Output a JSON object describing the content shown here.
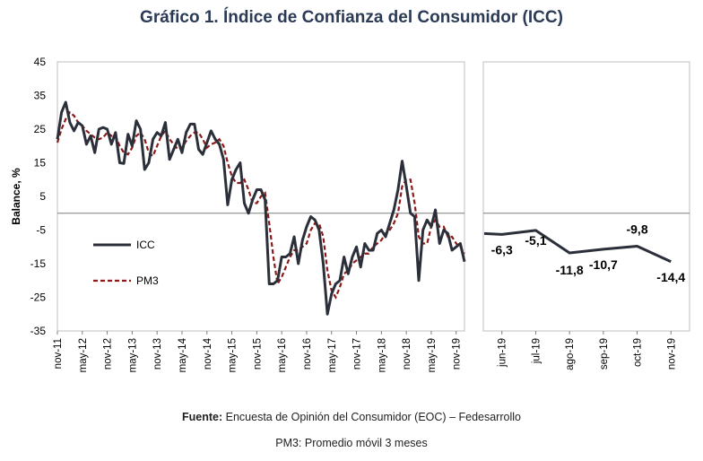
{
  "title": "Gráfico 1. Índice de Confianza del Consumidor (ICC)",
  "source": {
    "label": "Fuente:",
    "text": "Encuesta de Opinión del Consumidor (EOC) – Fedesarrollo",
    "note": "PM3: Promedio móvil 3 meses"
  },
  "chart_data": [
    {
      "type": "line",
      "ylabel": "Balance, %",
      "ylim": [
        -35,
        45
      ],
      "yticks": [
        45,
        35,
        25,
        15,
        5,
        -5,
        -15,
        -25,
        -35
      ],
      "start_month": "nov-11",
      "x_ticks": [
        "nov-11",
        "may-12",
        "nov-12",
        "may-13",
        "nov-13",
        "may-14",
        "nov-14",
        "may-15",
        "nov-15",
        "may-16",
        "nov-16",
        "may-17",
        "nov-17",
        "may-18",
        "nov-18",
        "may-19",
        "nov-19"
      ],
      "legend": {
        "placement": "lower-left",
        "entries": [
          "ICC",
          "PM3"
        ]
      },
      "series": [
        {
          "name": "ICC",
          "color": "#2b2f3a",
          "style": "solid",
          "values": [
            22,
            30,
            33,
            27,
            24.5,
            27,
            26,
            20.5,
            23,
            18,
            25,
            25.5,
            25,
            20.5,
            24,
            15,
            14.8,
            23.5,
            20,
            27.5,
            25,
            13,
            15,
            22,
            24,
            23,
            27,
            16,
            19,
            22,
            18,
            24,
            26.5,
            26.5,
            19,
            17.5,
            21,
            24.5,
            22,
            20.5,
            16,
            2.5,
            10,
            13,
            15,
            3,
            0,
            4,
            7,
            7,
            4,
            -21,
            -21,
            -20,
            -13,
            -13,
            -12,
            -7,
            -15,
            -8,
            -4,
            -1,
            -2,
            -5,
            -15,
            -30,
            -24,
            -21,
            -20,
            -13,
            -18,
            -13,
            -10,
            -16,
            -9,
            -11,
            -11,
            -6,
            -5,
            -7,
            -3,
            1,
            7,
            15.5,
            8,
            0,
            -1,
            -20,
            -5,
            -2,
            -4,
            1,
            -9,
            -5,
            -6,
            -11,
            -10,
            -9,
            -14.4
          ]
        },
        {
          "name": "PM3",
          "color": "#8b1a1a",
          "style": "dashed",
          "values": [
            21,
            25,
            28,
            30,
            29,
            27,
            26,
            24.5,
            23.5,
            22.5,
            22,
            22.5,
            24,
            23,
            23,
            20,
            18,
            17.5,
            19.5,
            23,
            24,
            22,
            18,
            17,
            20,
            23,
            24.5,
            22,
            20.5,
            19,
            19.5,
            21.5,
            23,
            24,
            24,
            22,
            19.5,
            20.5,
            21,
            22,
            20,
            15,
            11,
            9,
            9,
            10,
            7,
            3,
            3,
            5,
            6,
            -3,
            -13,
            -21,
            -19,
            -16,
            -13,
            -11,
            -11,
            -10,
            -9,
            -5,
            -3,
            -3,
            -7,
            -17,
            -23,
            -25,
            -22,
            -18,
            -17,
            -15,
            -14,
            -13,
            -12,
            -12,
            -10,
            -9,
            -8,
            -6,
            -5,
            -3,
            0,
            8,
            10,
            10,
            3,
            -7,
            -9,
            -9,
            -4,
            -2,
            -4,
            -4,
            -7,
            -7,
            -9,
            -10,
            -12
          ]
        }
      ]
    },
    {
      "type": "line",
      "ylim": [
        -35,
        45
      ],
      "categories": [
        "jun-19",
        "jul-19",
        "ago-19",
        "sep-19",
        "oct-19",
        "nov-19"
      ],
      "series": [
        {
          "name": "ICC",
          "color": "#2b2f3a",
          "values": [
            -6.3,
            -5.1,
            -11.8,
            -10.7,
            -9.8,
            -14.4
          ],
          "labels": [
            "-6,3",
            "-5,1",
            "-11,8",
            "-10,7",
            "-9,8",
            "-14,4"
          ]
        }
      ]
    }
  ]
}
